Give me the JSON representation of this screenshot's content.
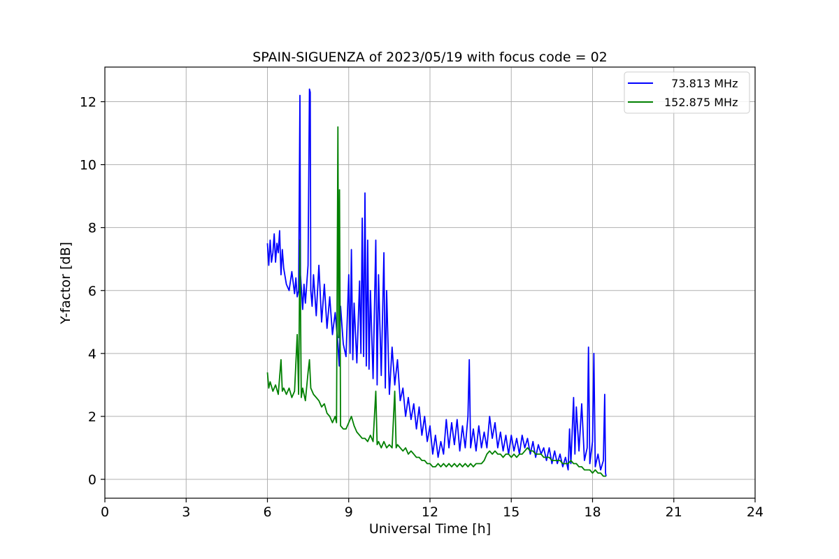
{
  "chart_data": {
    "type": "line",
    "title": "SPAIN-SIGUENZA of 2023/05/19 with focus code = 02",
    "xlabel": "Universal Time [h]",
    "ylabel": "Y-factor [dB]",
    "xlim": [
      0,
      24
    ],
    "ylim": [
      -0.6,
      13.1
    ],
    "xticks": [
      0,
      3,
      6,
      9,
      12,
      15,
      18,
      21,
      24
    ],
    "yticks": [
      0,
      2,
      4,
      6,
      8,
      10,
      12
    ],
    "grid": true,
    "legend_position": "top-right",
    "series": [
      {
        "name": "  73.813 MHz",
        "color": "#0000ff",
        "points": [
          [
            6.0,
            7.5
          ],
          [
            6.05,
            6.8
          ],
          [
            6.1,
            7.6
          ],
          [
            6.15,
            6.9
          ],
          [
            6.2,
            7.2
          ],
          [
            6.25,
            7.8
          ],
          [
            6.3,
            6.9
          ],
          [
            6.35,
            7.5
          ],
          [
            6.4,
            7.2
          ],
          [
            6.45,
            7.9
          ],
          [
            6.5,
            6.5
          ],
          [
            6.55,
            7.3
          ],
          [
            6.6,
            6.7
          ],
          [
            6.7,
            6.2
          ],
          [
            6.8,
            6.0
          ],
          [
            6.9,
            6.6
          ],
          [
            7.0,
            5.9
          ],
          [
            7.05,
            6.4
          ],
          [
            7.1,
            5.8
          ],
          [
            7.15,
            6.0
          ],
          [
            7.2,
            12.2
          ],
          [
            7.22,
            6.5
          ],
          [
            7.3,
            5.4
          ],
          [
            7.35,
            6.2
          ],
          [
            7.4,
            5.6
          ],
          [
            7.5,
            6.8
          ],
          [
            7.55,
            12.4
          ],
          [
            7.58,
            12.3
          ],
          [
            7.6,
            6.0
          ],
          [
            7.65,
            5.5
          ],
          [
            7.7,
            6.5
          ],
          [
            7.8,
            5.2
          ],
          [
            7.9,
            6.8
          ],
          [
            8.0,
            5.0
          ],
          [
            8.1,
            6.2
          ],
          [
            8.2,
            4.8
          ],
          [
            8.3,
            5.8
          ],
          [
            8.4,
            4.6
          ],
          [
            8.5,
            5.3
          ],
          [
            8.6,
            4.3
          ],
          [
            8.65,
            3.6
          ],
          [
            8.7,
            5.5
          ],
          [
            8.8,
            4.3
          ],
          [
            8.9,
            3.9
          ],
          [
            9.0,
            6.5
          ],
          [
            9.05,
            4.0
          ],
          [
            9.1,
            7.3
          ],
          [
            9.15,
            3.8
          ],
          [
            9.2,
            5.6
          ],
          [
            9.3,
            3.7
          ],
          [
            9.4,
            6.3
          ],
          [
            9.45,
            4.0
          ],
          [
            9.5,
            8.3
          ],
          [
            9.55,
            3.9
          ],
          [
            9.6,
            9.1
          ],
          [
            9.65,
            3.6
          ],
          [
            9.7,
            7.6
          ],
          [
            9.75,
            3.5
          ],
          [
            9.8,
            6.0
          ],
          [
            9.9,
            3.2
          ],
          [
            10.0,
            7.6
          ],
          [
            10.05,
            3.0
          ],
          [
            10.1,
            6.5
          ],
          [
            10.2,
            3.3
          ],
          [
            10.3,
            7.2
          ],
          [
            10.35,
            2.9
          ],
          [
            10.4,
            6.0
          ],
          [
            10.5,
            2.7
          ],
          [
            10.6,
            4.2
          ],
          [
            10.7,
            3.0
          ],
          [
            10.8,
            3.8
          ],
          [
            10.9,
            2.5
          ],
          [
            11.0,
            2.9
          ],
          [
            11.1,
            2.0
          ],
          [
            11.2,
            2.6
          ],
          [
            11.3,
            1.9
          ],
          [
            11.4,
            2.4
          ],
          [
            11.5,
            1.6
          ],
          [
            11.6,
            2.3
          ],
          [
            11.7,
            1.4
          ],
          [
            11.8,
            2.0
          ],
          [
            11.9,
            1.2
          ],
          [
            12.0,
            1.7
          ],
          [
            12.1,
            0.8
          ],
          [
            12.2,
            1.4
          ],
          [
            12.3,
            0.7
          ],
          [
            12.4,
            1.2
          ],
          [
            12.5,
            0.8
          ],
          [
            12.6,
            1.9
          ],
          [
            12.7,
            1.0
          ],
          [
            12.8,
            1.8
          ],
          [
            12.9,
            1.1
          ],
          [
            13.0,
            1.9
          ],
          [
            13.1,
            0.9
          ],
          [
            13.2,
            1.7
          ],
          [
            13.3,
            1.0
          ],
          [
            13.4,
            2.0
          ],
          [
            13.45,
            3.8
          ],
          [
            13.5,
            1.0
          ],
          [
            13.6,
            1.6
          ],
          [
            13.7,
            0.9
          ],
          [
            13.8,
            1.7
          ],
          [
            13.9,
            1.0
          ],
          [
            14.0,
            1.5
          ],
          [
            14.1,
            1.0
          ],
          [
            14.2,
            2.0
          ],
          [
            14.3,
            1.3
          ],
          [
            14.4,
            1.8
          ],
          [
            14.5,
            1.0
          ],
          [
            14.6,
            1.5
          ],
          [
            14.7,
            0.9
          ],
          [
            14.8,
            1.4
          ],
          [
            14.9,
            0.8
          ],
          [
            15.0,
            1.4
          ],
          [
            15.1,
            0.9
          ],
          [
            15.2,
            1.3
          ],
          [
            15.3,
            0.8
          ],
          [
            15.4,
            1.4
          ],
          [
            15.5,
            1.0
          ],
          [
            15.6,
            1.3
          ],
          [
            15.7,
            0.8
          ],
          [
            15.8,
            1.2
          ],
          [
            15.9,
            0.7
          ],
          [
            16.0,
            1.1
          ],
          [
            16.1,
            0.8
          ],
          [
            16.2,
            1.0
          ],
          [
            16.3,
            0.6
          ],
          [
            16.4,
            1.0
          ],
          [
            16.5,
            0.5
          ],
          [
            16.6,
            0.9
          ],
          [
            16.7,
            0.5
          ],
          [
            16.8,
            0.8
          ],
          [
            16.9,
            0.4
          ],
          [
            17.0,
            0.7
          ],
          [
            17.1,
            0.3
          ],
          [
            17.15,
            1.6
          ],
          [
            17.2,
            0.5
          ],
          [
            17.3,
            2.6
          ],
          [
            17.35,
            0.8
          ],
          [
            17.4,
            2.3
          ],
          [
            17.5,
            0.9
          ],
          [
            17.6,
            2.4
          ],
          [
            17.7,
            0.6
          ],
          [
            17.8,
            1.0
          ],
          [
            17.85,
            4.2
          ],
          [
            17.9,
            0.5
          ],
          [
            18.0,
            1.2
          ],
          [
            18.05,
            4.0
          ],
          [
            18.1,
            0.4
          ],
          [
            18.2,
            0.8
          ],
          [
            18.3,
            0.3
          ],
          [
            18.4,
            0.6
          ],
          [
            18.45,
            2.7
          ],
          [
            18.48,
            0.2
          ],
          [
            18.5,
            0.1
          ]
        ]
      },
      {
        "name": "152.875 MHz",
        "color": "#008000",
        "points": [
          [
            6.0,
            3.4
          ],
          [
            6.05,
            2.9
          ],
          [
            6.1,
            3.1
          ],
          [
            6.2,
            2.8
          ],
          [
            6.3,
            3.0
          ],
          [
            6.4,
            2.7
          ],
          [
            6.5,
            3.8
          ],
          [
            6.55,
            2.8
          ],
          [
            6.6,
            2.9
          ],
          [
            6.7,
            2.7
          ],
          [
            6.8,
            2.9
          ],
          [
            6.9,
            2.6
          ],
          [
            7.0,
            2.8
          ],
          [
            7.1,
            4.6
          ],
          [
            7.15,
            2.7
          ],
          [
            7.2,
            7.6
          ],
          [
            7.25,
            2.6
          ],
          [
            7.3,
            2.9
          ],
          [
            7.4,
            2.5
          ],
          [
            7.5,
            3.4
          ],
          [
            7.55,
            3.8
          ],
          [
            7.6,
            2.9
          ],
          [
            7.7,
            2.7
          ],
          [
            7.8,
            2.6
          ],
          [
            7.9,
            2.5
          ],
          [
            8.0,
            2.3
          ],
          [
            8.1,
            2.4
          ],
          [
            8.2,
            2.1
          ],
          [
            8.3,
            2.0
          ],
          [
            8.4,
            1.8
          ],
          [
            8.5,
            2.0
          ],
          [
            8.55,
            1.8
          ],
          [
            8.6,
            11.2
          ],
          [
            8.63,
            4.5
          ],
          [
            8.66,
            9.2
          ],
          [
            8.7,
            1.7
          ],
          [
            8.8,
            1.6
          ],
          [
            8.9,
            1.6
          ],
          [
            9.0,
            1.8
          ],
          [
            9.1,
            2.0
          ],
          [
            9.2,
            1.7
          ],
          [
            9.3,
            1.5
          ],
          [
            9.4,
            1.4
          ],
          [
            9.5,
            1.3
          ],
          [
            9.6,
            1.3
          ],
          [
            9.7,
            1.2
          ],
          [
            9.8,
            1.4
          ],
          [
            9.9,
            1.2
          ],
          [
            10.0,
            2.8
          ],
          [
            10.05,
            1.1
          ],
          [
            10.1,
            1.2
          ],
          [
            10.2,
            1.0
          ],
          [
            10.3,
            1.2
          ],
          [
            10.4,
            1.0
          ],
          [
            10.5,
            1.1
          ],
          [
            10.6,
            1.0
          ],
          [
            10.7,
            2.8
          ],
          [
            10.75,
            1.0
          ],
          [
            10.8,
            1.1
          ],
          [
            10.9,
            1.0
          ],
          [
            11.0,
            0.9
          ],
          [
            11.1,
            1.0
          ],
          [
            11.2,
            0.8
          ],
          [
            11.3,
            0.9
          ],
          [
            11.4,
            0.8
          ],
          [
            11.5,
            0.7
          ],
          [
            11.6,
            0.7
          ],
          [
            11.7,
            0.6
          ],
          [
            11.8,
            0.6
          ],
          [
            11.9,
            0.5
          ],
          [
            12.0,
            0.5
          ],
          [
            12.1,
            0.4
          ],
          [
            12.2,
            0.4
          ],
          [
            12.3,
            0.5
          ],
          [
            12.4,
            0.4
          ],
          [
            12.5,
            0.5
          ],
          [
            12.6,
            0.4
          ],
          [
            12.7,
            0.5
          ],
          [
            12.8,
            0.4
          ],
          [
            12.9,
            0.5
          ],
          [
            13.0,
            0.4
          ],
          [
            13.1,
            0.5
          ],
          [
            13.2,
            0.4
          ],
          [
            13.3,
            0.5
          ],
          [
            13.4,
            0.4
          ],
          [
            13.5,
            0.5
          ],
          [
            13.6,
            0.4
          ],
          [
            13.7,
            0.5
          ],
          [
            13.8,
            0.5
          ],
          [
            13.9,
            0.5
          ],
          [
            14.0,
            0.6
          ],
          [
            14.1,
            0.8
          ],
          [
            14.2,
            0.9
          ],
          [
            14.3,
            0.8
          ],
          [
            14.4,
            0.9
          ],
          [
            14.5,
            0.8
          ],
          [
            14.6,
            0.8
          ],
          [
            14.7,
            0.7
          ],
          [
            14.8,
            0.8
          ],
          [
            14.9,
            0.8
          ],
          [
            15.0,
            0.7
          ],
          [
            15.1,
            0.8
          ],
          [
            15.2,
            0.7
          ],
          [
            15.3,
            0.8
          ],
          [
            15.4,
            0.8
          ],
          [
            15.5,
            0.9
          ],
          [
            15.6,
            1.0
          ],
          [
            15.7,
            0.9
          ],
          [
            15.8,
            0.9
          ],
          [
            15.9,
            0.8
          ],
          [
            16.0,
            0.8
          ],
          [
            16.1,
            0.8
          ],
          [
            16.2,
            0.7
          ],
          [
            16.3,
            0.7
          ],
          [
            16.4,
            0.7
          ],
          [
            16.5,
            0.6
          ],
          [
            16.6,
            0.6
          ],
          [
            16.7,
            0.6
          ],
          [
            16.8,
            0.6
          ],
          [
            16.9,
            0.5
          ],
          [
            17.0,
            0.5
          ],
          [
            17.1,
            0.5
          ],
          [
            17.2,
            0.6
          ],
          [
            17.3,
            0.5
          ],
          [
            17.4,
            0.5
          ],
          [
            17.5,
            0.4
          ],
          [
            17.6,
            0.4
          ],
          [
            17.7,
            0.3
          ],
          [
            17.8,
            0.3
          ],
          [
            17.9,
            0.3
          ],
          [
            18.0,
            0.2
          ],
          [
            18.1,
            0.3
          ],
          [
            18.2,
            0.2
          ],
          [
            18.3,
            0.2
          ],
          [
            18.4,
            0.1
          ],
          [
            18.5,
            0.1
          ]
        ]
      }
    ]
  }
}
